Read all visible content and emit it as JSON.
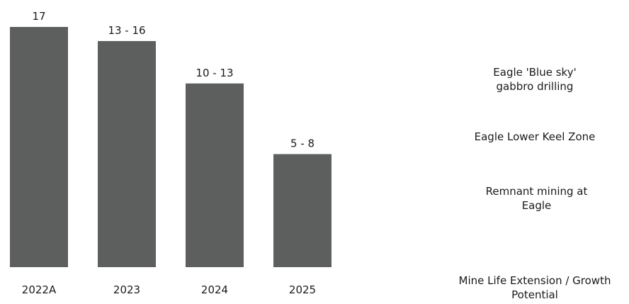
{
  "chart_data": {
    "type": "bar",
    "categories": [
      "2022A",
      "2023",
      "2024",
      "2025"
    ],
    "values": [
      17,
      16,
      13,
      8
    ],
    "value_labels": [
      "17",
      "13 - 16",
      "10 - 13",
      "5 - 8"
    ],
    "ylim": [
      0,
      17
    ],
    "grid": false,
    "bar_color": "#5d5f5e"
  },
  "side_panel": {
    "blue_sky": "Eagle 'Blue sky' gabbro drilling",
    "lower_keel": "Eagle Lower Keel Zone",
    "remnant": "Remnant mining at Eagle",
    "footer": "Mine Life Extension / Growth Potential"
  }
}
